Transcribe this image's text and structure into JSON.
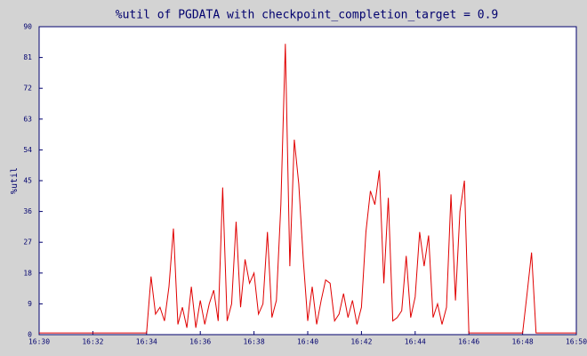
{
  "chart_data": {
    "type": "line",
    "title": "%util of PGDATA with checkpoint_completion_target = 0.9",
    "y_label": "%util",
    "categories": [
      "16:30",
      null,
      null,
      null,
      null,
      null,
      null,
      null,
      null,
      null,
      null,
      null,
      "16:32",
      null,
      null,
      null,
      null,
      null,
      null,
      null,
      null,
      null,
      null,
      null,
      "16:34",
      null,
      null,
      null,
      null,
      null,
      null,
      null,
      null,
      null,
      null,
      null,
      "16:36",
      null,
      null,
      null,
      null,
      null,
      null,
      null,
      null,
      null,
      null,
      null,
      "16:38",
      null,
      null,
      null,
      null,
      null,
      null,
      null,
      null,
      null,
      null,
      null,
      "16:40",
      null,
      null,
      null,
      null,
      null,
      null,
      null,
      null,
      null,
      null,
      null,
      "16:42",
      null,
      null,
      null,
      null,
      null,
      null,
      null,
      null,
      null,
      null,
      null,
      "16:44",
      null,
      null,
      null,
      null,
      null,
      null,
      null,
      null,
      null,
      null,
      null,
      "16:46",
      null,
      null,
      null,
      null,
      null,
      null,
      null,
      null,
      null,
      null,
      null,
      "16:48",
      null,
      null,
      null,
      null,
      null,
      null,
      null,
      null,
      null,
      null,
      null,
      "16:50"
    ],
    "series": [
      {
        "color": "#e00000",
        "values": [
          0.5,
          0.5,
          0.5,
          0.5,
          0.5,
          0.5,
          0.5,
          0.5,
          0.5,
          0.5,
          0.5,
          0.5,
          0.5,
          0.5,
          0.5,
          0.5,
          0.5,
          0.5,
          0.5,
          0.5,
          0.5,
          0.5,
          0.5,
          0.5,
          0.5,
          17,
          6,
          8,
          4,
          14,
          31,
          3,
          8,
          2,
          14,
          2,
          10,
          3,
          9,
          13,
          4,
          43,
          4,
          9,
          33,
          8,
          22,
          15,
          18,
          6,
          9,
          30,
          5,
          10,
          38,
          85,
          20,
          57,
          44,
          22,
          4,
          14,
          3,
          10,
          16,
          15,
          4,
          6,
          12,
          5,
          10,
          3,
          8,
          30,
          42,
          38,
          48,
          15,
          40,
          4,
          5,
          7,
          23,
          5,
          11,
          30,
          20,
          29,
          5,
          9,
          3,
          8,
          41,
          10,
          36,
          45,
          0.5,
          0.5,
          0.5,
          0.5,
          0.5,
          0.5,
          0.5,
          0.5,
          0.5,
          0.5,
          0.5,
          0.5,
          0.5,
          12,
          24,
          0.5,
          0.5,
          0.5,
          0.5,
          0.5,
          0.5,
          0.5,
          0.5,
          0.5,
          0.5
        ]
      }
    ],
    "ylim": [
      0,
      90
    ],
    "yticks": [
      0,
      9,
      18,
      27,
      36,
      45,
      54,
      63,
      72,
      81,
      90
    ],
    "grid": false
  }
}
